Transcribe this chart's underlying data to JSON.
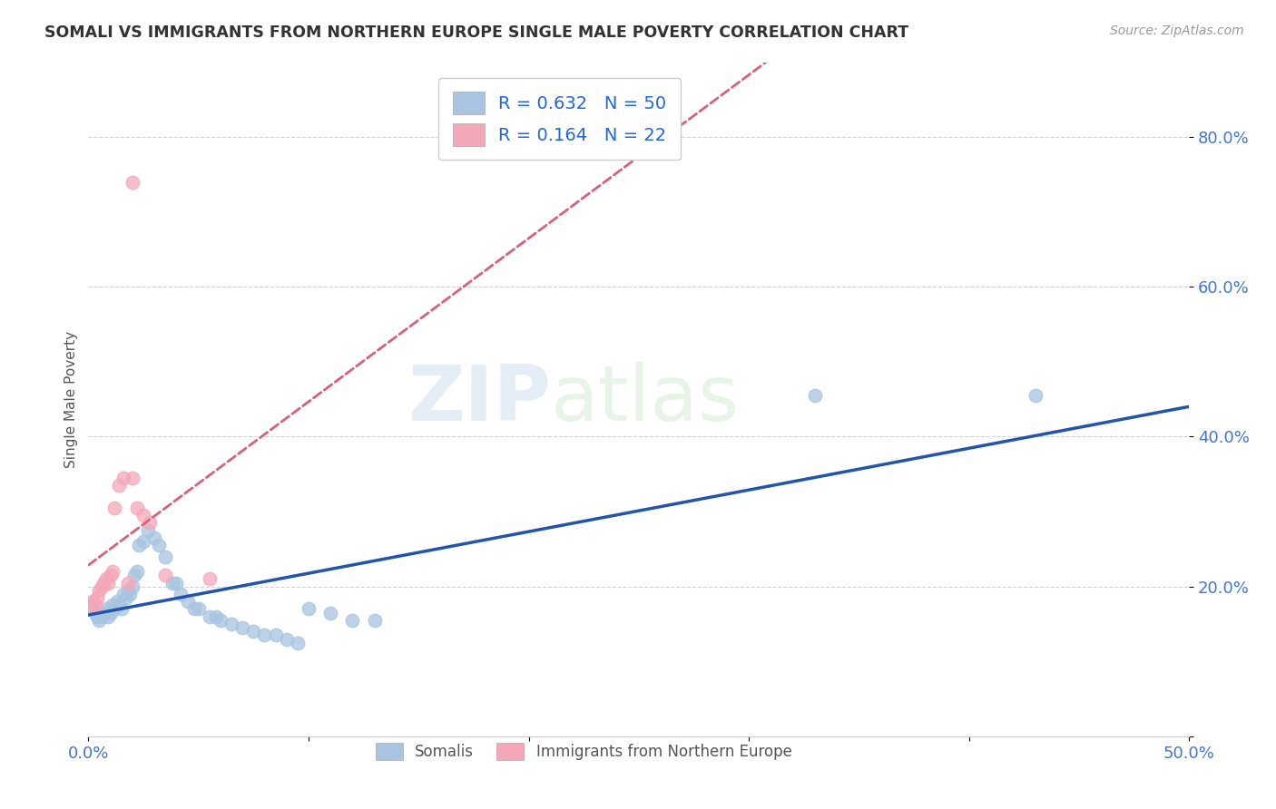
{
  "title": "SOMALI VS IMMIGRANTS FROM NORTHERN EUROPE SINGLE MALE POVERTY CORRELATION CHART",
  "source": "Source: ZipAtlas.com",
  "ylabel": "Single Male Poverty",
  "xlim": [
    0.0,
    0.5
  ],
  "ylim": [
    0.0,
    0.9
  ],
  "xticks": [
    0.0,
    0.1,
    0.2,
    0.3,
    0.4,
    0.5
  ],
  "yticks": [
    0.0,
    0.2,
    0.4,
    0.6,
    0.8
  ],
  "ytick_labels": [
    "",
    "20.0%",
    "40.0%",
    "60.0%",
    "80.0%"
  ],
  "xtick_labels": [
    "0.0%",
    "",
    "",
    "",
    "",
    "50.0%"
  ],
  "somali_color": "#a8c4e0",
  "northern_europe_color": "#f4a7b9",
  "somali_line_color": "#2255aa",
  "northern_europe_line_color": "#d9607a",
  "watermark_zip": "ZIP",
  "watermark_atlas": "atlas",
  "somali_x": [
    0.001,
    0.002,
    0.003,
    0.004,
    0.005,
    0.006,
    0.007,
    0.008,
    0.009,
    0.01,
    0.011,
    0.012,
    0.013,
    0.014,
    0.015,
    0.016,
    0.017,
    0.018,
    0.019,
    0.02,
    0.021,
    0.022,
    0.023,
    0.025,
    0.027,
    0.03,
    0.032,
    0.035,
    0.038,
    0.04,
    0.042,
    0.045,
    0.048,
    0.05,
    0.055,
    0.058,
    0.06,
    0.065,
    0.07,
    0.075,
    0.08,
    0.085,
    0.09,
    0.095,
    0.1,
    0.11,
    0.12,
    0.13,
    0.33,
    0.43
  ],
  "somali_y": [
    0.175,
    0.17,
    0.165,
    0.16,
    0.155,
    0.16,
    0.165,
    0.17,
    0.16,
    0.165,
    0.175,
    0.17,
    0.18,
    0.175,
    0.17,
    0.19,
    0.185,
    0.195,
    0.19,
    0.2,
    0.215,
    0.22,
    0.255,
    0.26,
    0.275,
    0.265,
    0.255,
    0.24,
    0.205,
    0.205,
    0.19,
    0.18,
    0.17,
    0.17,
    0.16,
    0.16,
    0.155,
    0.15,
    0.145,
    0.14,
    0.135,
    0.135,
    0.13,
    0.125,
    0.17,
    0.165,
    0.155,
    0.155,
    0.455,
    0.455
  ],
  "northern_europe_x": [
    0.001,
    0.002,
    0.003,
    0.004,
    0.005,
    0.006,
    0.007,
    0.008,
    0.009,
    0.01,
    0.011,
    0.012,
    0.014,
    0.016,
    0.018,
    0.02,
    0.022,
    0.025,
    0.028,
    0.035,
    0.055,
    0.02
  ],
  "northern_europe_y": [
    0.175,
    0.18,
    0.175,
    0.185,
    0.195,
    0.2,
    0.205,
    0.21,
    0.205,
    0.215,
    0.22,
    0.305,
    0.335,
    0.345,
    0.205,
    0.345,
    0.305,
    0.295,
    0.285,
    0.215,
    0.21,
    0.74
  ],
  "somali_R": "0.632",
  "somali_N": "50",
  "northern_R": "0.164",
  "northern_N": "22"
}
